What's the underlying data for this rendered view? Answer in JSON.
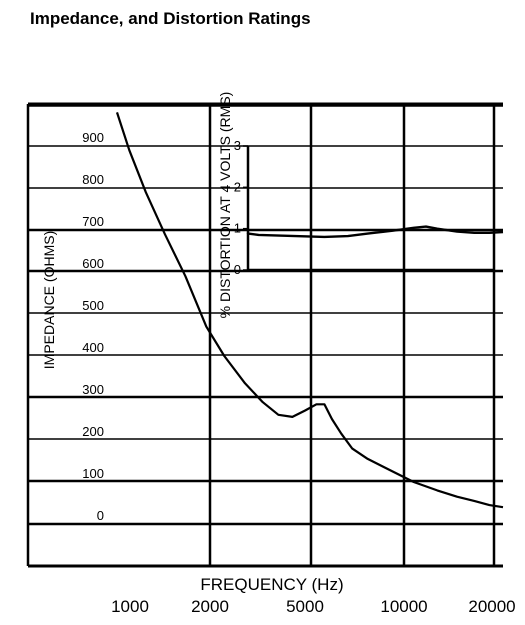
{
  "title": "Impedance, and Distortion Ratings",
  "chart_data": [
    {
      "type": "line",
      "xlabel": "FREQUENCY (Hz)",
      "ylabel": "IMPEDANCE (OHMS)",
      "x_scale": "log",
      "x_ticks": [
        "1000",
        "2000",
        "5000",
        "10000",
        "20000"
      ],
      "y_ticks": [
        "0",
        "100",
        "200",
        "300",
        "400",
        "500",
        "600",
        "700",
        "800",
        "900"
      ],
      "grid": true,
      "series": [
        {
          "x": [
            1000,
            1100,
            1250,
            1450,
            1700,
            2000,
            2300,
            2700,
            3100,
            3500,
            3900,
            4300,
            4700,
            5000,
            5300,
            5700,
            6200,
            7000,
            8500,
            10000,
            12000,
            14000,
            16000,
            18000,
            20000
          ],
          "y": [
            980,
            890,
            790,
            690,
            590,
            470,
            400,
            335,
            290,
            260,
            255,
            270,
            285,
            285,
            250,
            215,
            180,
            155,
            125,
            100,
            80,
            65,
            55,
            45,
            40
          ]
        }
      ]
    },
    {
      "type": "line",
      "ylabel": "% DISTORTION AT 4 VOLTS (RMS)",
      "y_ticks": [
        "0",
        "1",
        "2",
        "3"
      ],
      "ylim": [
        0,
        3
      ],
      "series": [
        {
          "x": [
            1000,
            2000,
            3000,
            4000,
            5000,
            6000,
            7000,
            8500,
            10000,
            11000,
            12000,
            14000,
            16000,
            18000,
            20000
          ],
          "y": [
            0.9,
            0.88,
            0.85,
            0.82,
            0.8,
            0.82,
            0.88,
            0.95,
            1.02,
            1.05,
            1.0,
            0.93,
            0.9,
            0.9,
            0.92
          ]
        }
      ]
    }
  ]
}
